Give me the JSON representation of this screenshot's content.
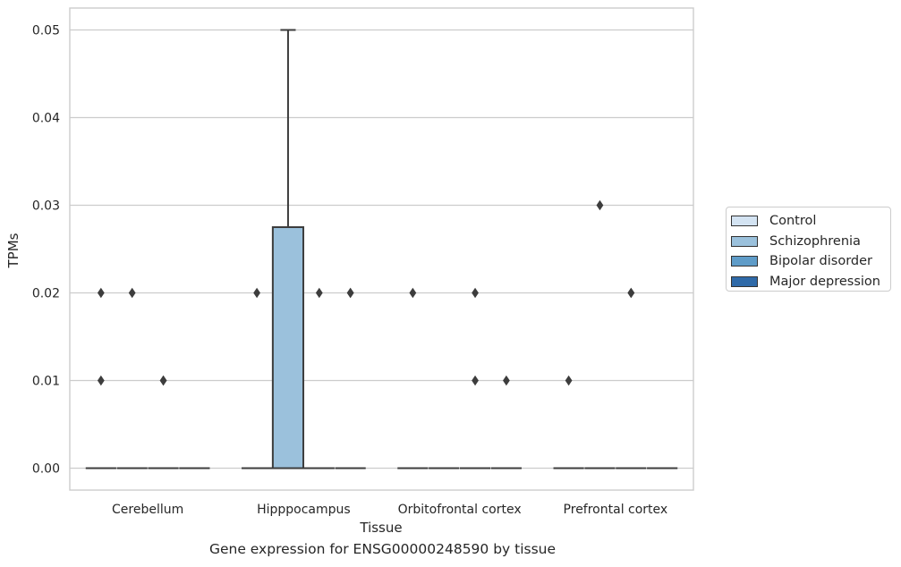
{
  "chart_data": {
    "type": "box",
    "xlabel": "Tissue",
    "ylabel": "TPMs",
    "caption": "Gene expression for ENSG00000248590 by tissue",
    "categories": [
      "Cerebellum",
      "Hipppocampus",
      "Orbitofrontal cortex",
      "Prefrontal cortex"
    ],
    "ylim": [
      -0.0025,
      0.0525
    ],
    "yticks": [
      0.0,
      0.01,
      0.02,
      0.03,
      0.04,
      0.05
    ],
    "ytick_labels": [
      "0.00",
      "0.01",
      "0.02",
      "0.03",
      "0.04",
      "0.05"
    ],
    "grid": true,
    "legend_position": "right",
    "series": [
      {
        "name": "Control",
        "color": "#d3e3f2"
      },
      {
        "name": "Schizophrenia",
        "color": "#9bc1dc"
      },
      {
        "name": "Bipolar disorder",
        "color": "#5f9cc8"
      },
      {
        "name": "Major depression",
        "color": "#2f6aa8"
      }
    ],
    "boxes": [
      {
        "category": 0,
        "series": 0,
        "q1": 0,
        "median": 0,
        "q3": 0,
        "whisker_low": 0,
        "whisker_high": 0,
        "outliers": [
          0.01,
          0.02
        ]
      },
      {
        "category": 0,
        "series": 1,
        "q1": 0,
        "median": 0,
        "q3": 0,
        "whisker_low": 0,
        "whisker_high": 0,
        "outliers": [
          0.02
        ]
      },
      {
        "category": 0,
        "series": 2,
        "q1": 0,
        "median": 0,
        "q3": 0,
        "whisker_low": 0,
        "whisker_high": 0,
        "outliers": [
          0.01,
          0.01
        ]
      },
      {
        "category": 0,
        "series": 3,
        "q1": 0,
        "median": 0,
        "q3": 0,
        "whisker_low": 0,
        "whisker_high": 0,
        "outliers": []
      },
      {
        "category": 1,
        "series": 0,
        "q1": 0,
        "median": 0,
        "q3": 0,
        "whisker_low": 0,
        "whisker_high": 0,
        "outliers": [
          0.02
        ]
      },
      {
        "category": 1,
        "series": 1,
        "q1": 0,
        "median": 0,
        "q3": 0.0275,
        "whisker_low": 0,
        "whisker_high": 0.05,
        "outliers": []
      },
      {
        "category": 1,
        "series": 2,
        "q1": 0,
        "median": 0,
        "q3": 0,
        "whisker_low": 0,
        "whisker_high": 0,
        "outliers": [
          0.02
        ]
      },
      {
        "category": 1,
        "series": 3,
        "q1": 0,
        "median": 0,
        "q3": 0,
        "whisker_low": 0,
        "whisker_high": 0,
        "outliers": [
          0.02,
          0.02
        ]
      },
      {
        "category": 2,
        "series": 0,
        "q1": 0,
        "median": 0,
        "q3": 0,
        "whisker_low": 0,
        "whisker_high": 0,
        "outliers": [
          0.02
        ]
      },
      {
        "category": 2,
        "series": 1,
        "q1": 0,
        "median": 0,
        "q3": 0,
        "whisker_low": 0,
        "whisker_high": 0,
        "outliers": []
      },
      {
        "category": 2,
        "series": 2,
        "q1": 0,
        "median": 0,
        "q3": 0,
        "whisker_low": 0,
        "whisker_high": 0,
        "outliers": [
          0.02,
          0.01
        ]
      },
      {
        "category": 2,
        "series": 3,
        "q1": 0,
        "median": 0,
        "q3": 0,
        "whisker_low": 0,
        "whisker_high": 0,
        "outliers": [
          0.01
        ]
      },
      {
        "category": 3,
        "series": 0,
        "q1": 0,
        "median": 0,
        "q3": 0,
        "whisker_low": 0,
        "whisker_high": 0,
        "outliers": [
          0.01
        ]
      },
      {
        "category": 3,
        "series": 1,
        "q1": 0,
        "median": 0,
        "q3": 0,
        "whisker_low": 0,
        "whisker_high": 0,
        "outliers": [
          0.03
        ]
      },
      {
        "category": 3,
        "series": 2,
        "q1": 0,
        "median": 0,
        "q3": 0,
        "whisker_low": 0,
        "whisker_high": 0,
        "outliers": [
          0.02,
          0.02
        ]
      },
      {
        "category": 3,
        "series": 3,
        "q1": 0,
        "median": 0,
        "q3": 0,
        "whisker_low": 0,
        "whisker_high": 0,
        "outliers": []
      }
    ]
  }
}
